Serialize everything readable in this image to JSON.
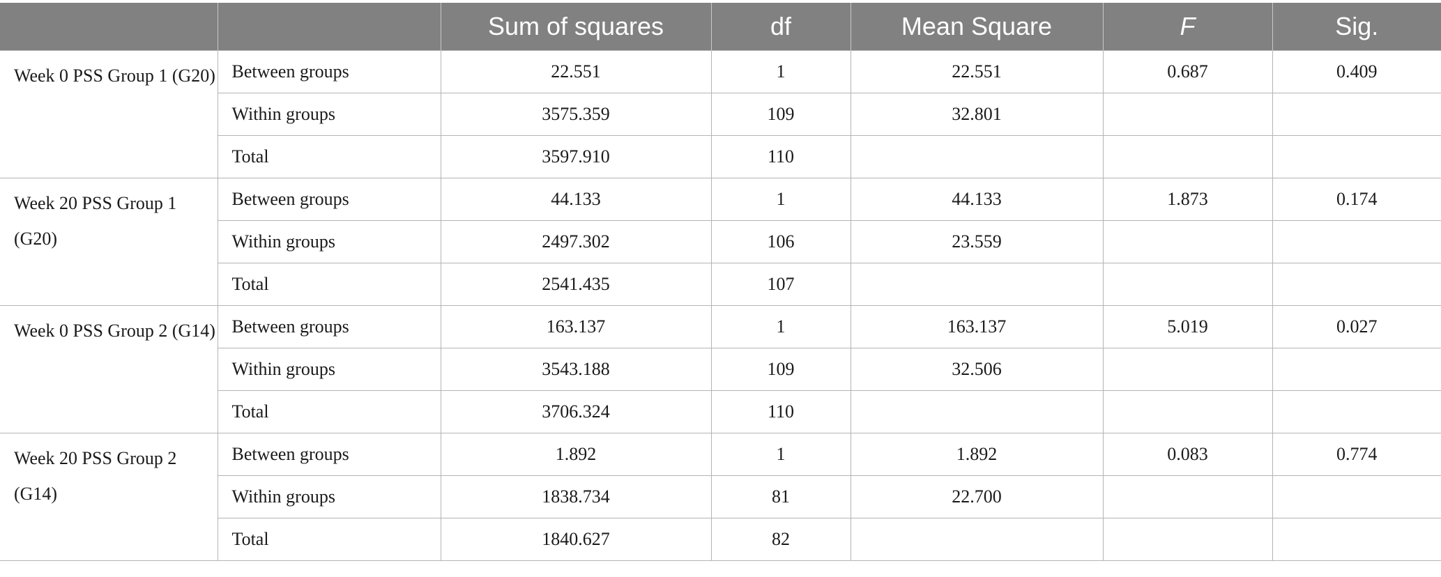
{
  "header": {
    "col_variable": "",
    "col_source": "",
    "col_sum_squares": "Sum of squares",
    "col_df": "df",
    "col_mean_square": "Mean Square",
    "col_f": "F",
    "col_sig": "Sig."
  },
  "groups": [
    {
      "variable": "Week 0 PSS Group 1 (G20)",
      "rows": [
        {
          "source": "Between groups",
          "ss": "22.551",
          "df": "1",
          "ms": "22.551",
          "f": "0.687",
          "sig": "0.409"
        },
        {
          "source": "Within groups",
          "ss": "3575.359",
          "df": "109",
          "ms": "32.801",
          "f": "",
          "sig": ""
        },
        {
          "source": "Total",
          "ss": "3597.910",
          "df": "110",
          "ms": "",
          "f": "",
          "sig": ""
        }
      ]
    },
    {
      "variable": "Week 20 PSS Group 1 (G20)",
      "rows": [
        {
          "source": "Between groups",
          "ss": "44.133",
          "df": "1",
          "ms": "44.133",
          "f": "1.873",
          "sig": "0.174"
        },
        {
          "source": "Within groups",
          "ss": "2497.302",
          "df": "106",
          "ms": "23.559",
          "f": "",
          "sig": ""
        },
        {
          "source": "Total",
          "ss": "2541.435",
          "df": "107",
          "ms": "",
          "f": "",
          "sig": ""
        }
      ]
    },
    {
      "variable": "Week 0 PSS Group 2 (G14)",
      "rows": [
        {
          "source": "Between groups",
          "ss": "163.137",
          "df": "1",
          "ms": "163.137",
          "f": "5.019",
          "sig": "0.027"
        },
        {
          "source": "Within groups",
          "ss": "3543.188",
          "df": "109",
          "ms": "32.506",
          "f": "",
          "sig": ""
        },
        {
          "source": "Total",
          "ss": "3706.324",
          "df": "110",
          "ms": "",
          "f": "",
          "sig": ""
        }
      ]
    },
    {
      "variable": "Week 20 PSS Group 2 (G14)",
      "rows": [
        {
          "source": "Between groups",
          "ss": "1.892",
          "df": "1",
          "ms": "1.892",
          "f": "0.083",
          "sig": "0.774"
        },
        {
          "source": "Within groups",
          "ss": "1838.734",
          "df": "81",
          "ms": "22.700",
          "f": "",
          "sig": ""
        },
        {
          "source": "Total",
          "ss": "1840.627",
          "df": "82",
          "ms": "",
          "f": "",
          "sig": ""
        }
      ]
    }
  ]
}
